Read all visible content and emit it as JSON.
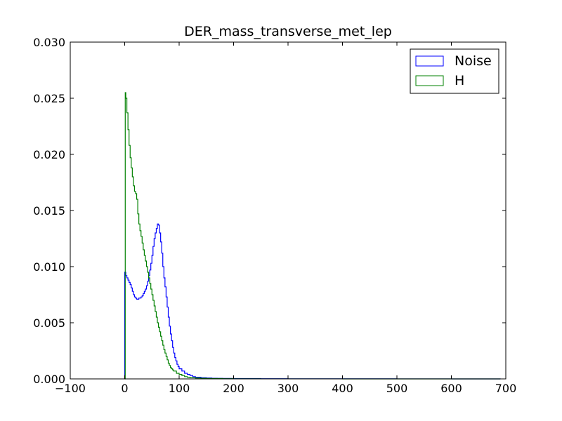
{
  "chart_data": {
    "type": "line",
    "title": "DER_mass_transverse_met_lep",
    "xlabel": "",
    "ylabel": "",
    "xlim": [
      -100,
      700
    ],
    "ylim": [
      0,
      0.03
    ],
    "x_ticks": [
      -100,
      0,
      100,
      200,
      300,
      400,
      500,
      600,
      700
    ],
    "x_tick_labels": [
      "−100",
      "0",
      "100",
      "200",
      "300",
      "400",
      "500",
      "600",
      "700"
    ],
    "y_ticks": [
      0,
      0.005,
      0.01,
      0.015,
      0.02,
      0.025,
      0.03
    ],
    "y_tick_labels": [
      "0.000",
      "0.005",
      "0.010",
      "0.015",
      "0.020",
      "0.025",
      "0.030"
    ],
    "legend_position": "top-right",
    "grid": false,
    "histtype": "step",
    "series": [
      {
        "name": "Noise",
        "color": "#0000ff",
        "x": [
          0,
          2,
          4,
          6,
          8,
          10,
          12,
          14,
          16,
          18,
          20,
          22,
          24,
          26,
          28,
          30,
          32,
          34,
          36,
          38,
          40,
          42,
          44,
          46,
          48,
          50,
          52,
          54,
          56,
          58,
          60,
          62,
          64,
          66,
          68,
          70,
          72,
          74,
          76,
          78,
          80,
          82,
          84,
          86,
          88,
          90,
          92,
          94,
          96,
          98,
          100,
          105,
          110,
          115,
          120,
          125,
          130,
          140,
          150,
          160,
          170,
          180,
          200,
          250,
          300,
          400,
          500,
          600,
          690
        ],
        "y": [
          0.0095,
          0.0092,
          0.009,
          0.0088,
          0.0086,
          0.0084,
          0.0081,
          0.0078,
          0.0075,
          0.0073,
          0.0072,
          0.0071,
          0.0071,
          0.0072,
          0.0072,
          0.0073,
          0.0074,
          0.0076,
          0.0078,
          0.008,
          0.0083,
          0.0087,
          0.0092,
          0.0097,
          0.0103,
          0.011,
          0.0118,
          0.0125,
          0.013,
          0.0134,
          0.0138,
          0.0137,
          0.013,
          0.0122,
          0.0112,
          0.01,
          0.009,
          0.0082,
          0.0073,
          0.0064,
          0.0055,
          0.0047,
          0.004,
          0.0034,
          0.0028,
          0.0023,
          0.0019,
          0.0016,
          0.0013,
          0.0011,
          0.0009,
          0.0007,
          0.0005,
          0.0004,
          0.0003,
          0.0002,
          0.00015,
          0.0001,
          8e-05,
          6e-05,
          5e-05,
          4e-05,
          3e-05,
          2e-05,
          1e-05,
          1e-05,
          5e-06,
          2e-06,
          0
        ]
      },
      {
        "name": "H",
        "color": "#008000",
        "x": [
          0,
          1,
          2,
          4,
          6,
          8,
          10,
          12,
          14,
          16,
          18,
          20,
          22,
          24,
          26,
          28,
          30,
          32,
          34,
          36,
          38,
          40,
          42,
          44,
          46,
          48,
          50,
          52,
          54,
          56,
          58,
          60,
          62,
          64,
          66,
          68,
          70,
          72,
          74,
          76,
          78,
          80,
          82,
          84,
          86,
          88,
          90,
          95,
          100,
          105,
          110,
          115,
          120,
          130,
          140,
          150,
          160,
          180,
          200,
          250,
          300,
          400,
          500,
          600,
          690
        ],
        "y": [
          0,
          0.0255,
          0.025,
          0.0237,
          0.0222,
          0.0208,
          0.0197,
          0.0188,
          0.018,
          0.0172,
          0.0167,
          0.0165,
          0.016,
          0.0147,
          0.0138,
          0.0132,
          0.0127,
          0.0121,
          0.0115,
          0.011,
          0.0105,
          0.01,
          0.0095,
          0.009,
          0.0085,
          0.008,
          0.0075,
          0.007,
          0.0065,
          0.006,
          0.0055,
          0.005,
          0.0046,
          0.0042,
          0.0038,
          0.0034,
          0.003,
          0.0026,
          0.0023,
          0.002,
          0.0017,
          0.0014,
          0.0012,
          0.001,
          0.0009,
          0.0008,
          0.0007,
          0.0005,
          0.0004,
          0.0003,
          0.0002,
          0.00015,
          0.0001,
          8e-05,
          6e-05,
          4e-05,
          3e-05,
          2e-05,
          1e-05,
          5e-06,
          3e-06,
          2e-06,
          1e-06,
          0,
          0
        ]
      }
    ]
  }
}
